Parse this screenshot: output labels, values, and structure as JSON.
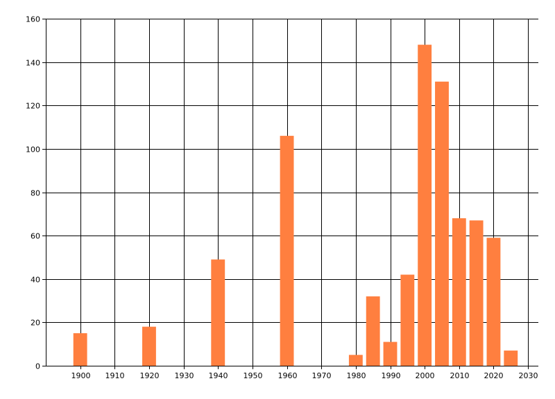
{
  "chart_data": {
    "type": "bar",
    "title": "",
    "xlabel": "",
    "ylabel": "",
    "xlim": [
      1890,
      2033
    ],
    "ylim": [
      0,
      160
    ],
    "x_ticks": [
      1900,
      1910,
      1920,
      1930,
      1940,
      1950,
      1960,
      1970,
      1980,
      1990,
      2000,
      2010,
      2020,
      2030
    ],
    "y_ticks": [
      0,
      20,
      40,
      60,
      80,
      100,
      120,
      140,
      160
    ],
    "grid": true,
    "bar_color": "#ff7f3f",
    "grid_color": "#000000",
    "bars": [
      {
        "x": 1900,
        "value": 15
      },
      {
        "x": 1920,
        "value": 18
      },
      {
        "x": 1940,
        "value": 49
      },
      {
        "x": 1960,
        "value": 106
      },
      {
        "x": 1980,
        "value": 5
      },
      {
        "x": 1985,
        "value": 32
      },
      {
        "x": 1990,
        "value": 11
      },
      {
        "x": 1995,
        "value": 42
      },
      {
        "x": 2000,
        "value": 148
      },
      {
        "x": 2005,
        "value": 131
      },
      {
        "x": 2010,
        "value": 68
      },
      {
        "x": 2015,
        "value": 67
      },
      {
        "x": 2020,
        "value": 59
      },
      {
        "x": 2025,
        "value": 7
      }
    ]
  }
}
